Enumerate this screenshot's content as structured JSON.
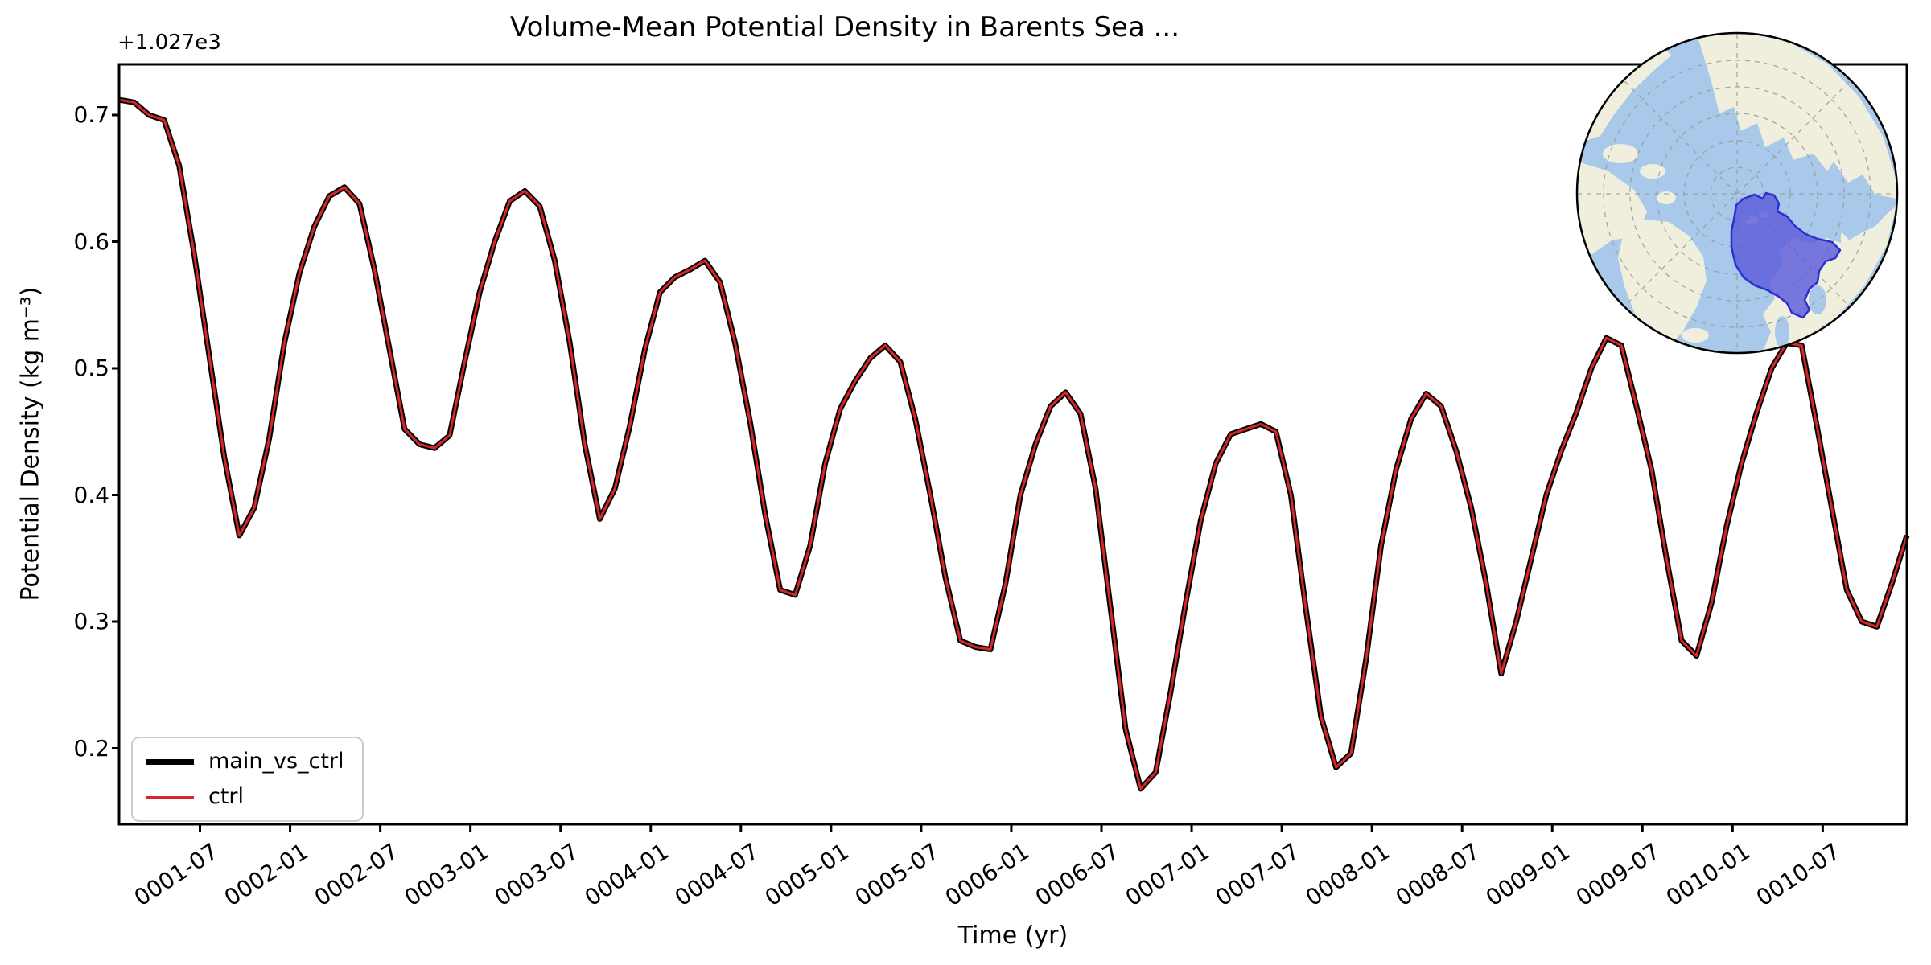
{
  "title": "Volume-Mean Potential Density in Barents Sea ...",
  "axes": {
    "xlabel": "Time (yr)",
    "ylabel": "Potential Density (kg m⁻³)",
    "offset_text": "+1.027e3",
    "ytick_labels": [
      "0.7",
      "0.6",
      "0.5",
      "0.4",
      "0.3",
      "0.2"
    ],
    "xtick_labels": [
      "0001-07",
      "0002-01",
      "0002-07",
      "0003-01",
      "0003-07",
      "0004-01",
      "0004-07",
      "0005-01",
      "0005-07",
      "0006-01",
      "0006-07",
      "0007-01",
      "0007-07",
      "0008-01",
      "0008-07",
      "0009-01",
      "0009-07",
      "0010-01",
      "0010-07"
    ]
  },
  "legend": {
    "entries": [
      {
        "label": "main_vs_ctrl",
        "color": "#000000",
        "linewidth": 7
      },
      {
        "label": "ctrl",
        "color": "#d62728",
        "linewidth": 3
      }
    ]
  },
  "chart_data": {
    "type": "line",
    "title": "Volume-Mean Potential Density in Barents Sea ...",
    "xlabel": "Time (yr)",
    "ylabel": "Potential Density (kg m⁻³)",
    "y_offset": 1027,
    "ylim": [
      0.14,
      0.74
    ],
    "x_start": "0001-01",
    "x_end": "0010-12",
    "frequency": "monthly",
    "grid": false,
    "legend_position": "lower left",
    "series": [
      {
        "name": "main_vs_ctrl",
        "color": "#000000",
        "linewidth": 7
      },
      {
        "name": "ctrl",
        "color": "#d62728",
        "linewidth": 3,
        "note": "identical to main_vs_ctrl, drawn on top"
      }
    ],
    "values": [
      0.712,
      0.71,
      0.7,
      0.696,
      0.66,
      0.59,
      0.51,
      0.43,
      0.368,
      0.39,
      0.445,
      0.52,
      0.575,
      0.612,
      0.636,
      0.643,
      0.63,
      0.578,
      0.515,
      0.452,
      0.44,
      0.437,
      0.447,
      0.505,
      0.56,
      0.6,
      0.632,
      0.64,
      0.628,
      0.585,
      0.52,
      0.44,
      0.381,
      0.405,
      0.455,
      0.515,
      0.56,
      0.572,
      0.578,
      0.585,
      0.568,
      0.52,
      0.458,
      0.385,
      0.325,
      0.321,
      0.36,
      0.425,
      0.468,
      0.49,
      0.508,
      0.518,
      0.505,
      0.46,
      0.4,
      0.335,
      0.285,
      0.28,
      0.278,
      0.33,
      0.4,
      0.44,
      0.47,
      0.481,
      0.464,
      0.405,
      0.31,
      0.215,
      0.168,
      0.181,
      0.245,
      0.315,
      0.38,
      0.425,
      0.448,
      0.452,
      0.456,
      0.45,
      0.4,
      0.31,
      0.225,
      0.185,
      0.196,
      0.27,
      0.36,
      0.42,
      0.46,
      0.48,
      0.47,
      0.435,
      0.39,
      0.33,
      0.259,
      0.3,
      0.35,
      0.4,
      0.435,
      0.465,
      0.5,
      0.524,
      0.518,
      0.47,
      0.42,
      0.35,
      0.285,
      0.273,
      0.315,
      0.375,
      0.425,
      0.465,
      0.5,
      0.52,
      0.518,
      0.455,
      0.39,
      0.325,
      0.3,
      0.296,
      0.33,
      0.368
    ]
  },
  "inset_map": {
    "region_label": "Barents Sea",
    "projection": "north-polar-stereographic",
    "ocean_color": "#a9c9ea",
    "land_color": "#f0eedc",
    "region_fill_color": "#5b5bdc",
    "region_edge_color": "#2f2fd0"
  }
}
